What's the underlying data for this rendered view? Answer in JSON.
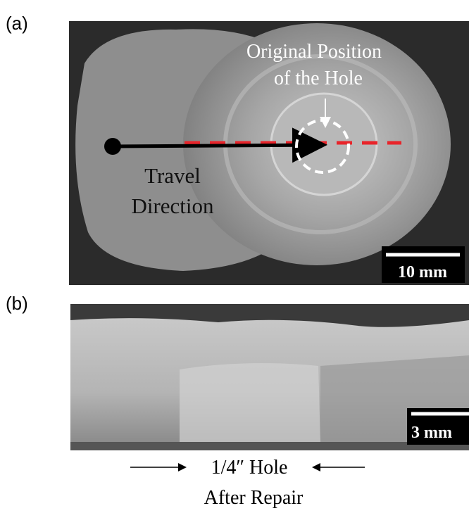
{
  "panel_a": {
    "label": "(a)",
    "hole_annotation": [
      "Original Position",
      "of the Hole"
    ],
    "travel_annotation": [
      "Travel",
      "Direction"
    ],
    "scale_bar": "10 mm"
  },
  "panel_b": {
    "label": "(b)",
    "scale_bar": "3 mm",
    "caption": [
      "1/4″ Hole",
      "After Repair"
    ]
  }
}
